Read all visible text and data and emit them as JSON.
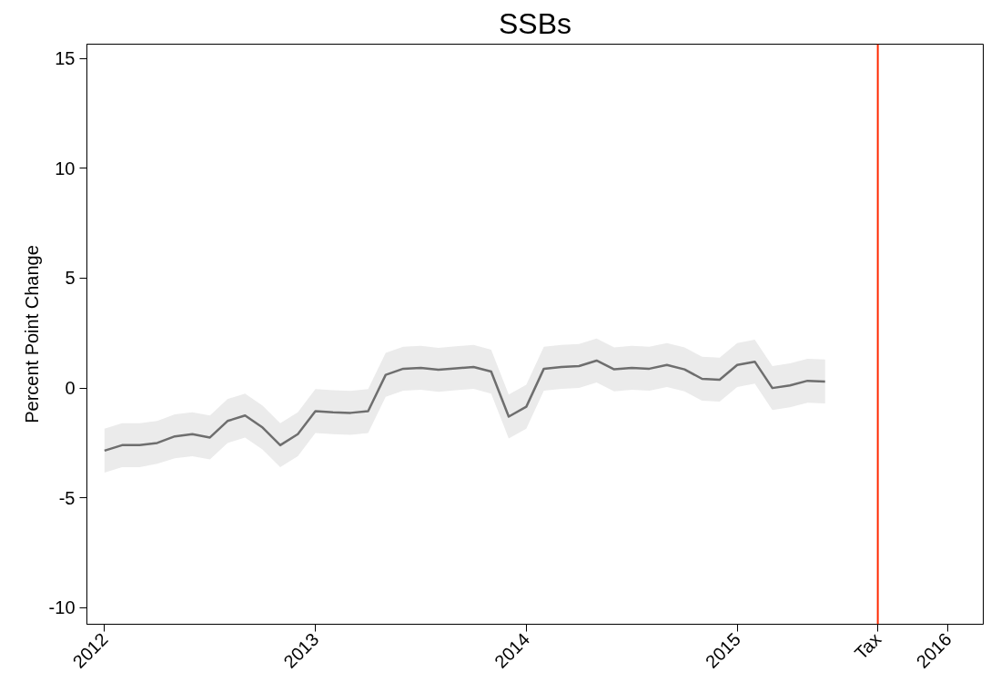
{
  "chart_data": {
    "type": "line",
    "title": "SSBs",
    "ylabel": "Percent Point Change",
    "x": [
      "2012-01",
      "2012-02",
      "2012-03",
      "2012-04",
      "2012-05",
      "2012-06",
      "2012-07",
      "2012-08",
      "2012-09",
      "2012-10",
      "2012-11",
      "2012-12",
      "2013-01",
      "2013-02",
      "2013-03",
      "2013-04",
      "2013-05",
      "2013-06",
      "2013-07",
      "2013-08",
      "2013-09",
      "2013-10",
      "2013-11",
      "2013-12",
      "2014-01",
      "2014-02",
      "2014-03",
      "2014-04",
      "2014-05",
      "2014-06",
      "2014-07",
      "2014-08",
      "2014-09",
      "2014-10",
      "2014-11",
      "2014-12",
      "2015-01",
      "2015-02",
      "2015-03",
      "2015-04",
      "2015-05",
      "2015-06"
    ],
    "series": [
      {
        "color": "#6e6e6e",
        "values": [
          -2.85,
          -2.6,
          -2.6,
          -2.5,
          -2.2,
          -2.1,
          -2.25,
          -1.5,
          -1.25,
          -1.8,
          -2.6,
          -2.1,
          -1.05,
          -1.1,
          -1.13,
          -1.05,
          0.6,
          0.88,
          0.92,
          0.83,
          0.9,
          0.96,
          0.75,
          -1.3,
          -0.85,
          0.88,
          0.96,
          1.0,
          1.25,
          0.85,
          0.92,
          0.88,
          1.05,
          0.85,
          0.42,
          0.38,
          1.05,
          1.2,
          0.0,
          0.12,
          0.33,
          0.3
        ],
        "lower": [
          -3.85,
          -3.6,
          -3.6,
          -3.45,
          -3.2,
          -3.1,
          -3.25,
          -2.5,
          -2.25,
          -2.8,
          -3.6,
          -3.1,
          -2.05,
          -2.1,
          -2.13,
          -2.05,
          -0.4,
          -0.12,
          -0.08,
          -0.17,
          -0.1,
          -0.04,
          -0.25,
          -2.3,
          -1.85,
          -0.12,
          -0.04,
          0.0,
          0.25,
          -0.15,
          -0.08,
          -0.12,
          0.05,
          -0.15,
          -0.58,
          -0.62,
          0.05,
          0.2,
          -1.0,
          -0.88,
          -0.67,
          -0.7
        ],
        "upper": [
          -1.85,
          -1.6,
          -1.6,
          -1.5,
          -1.2,
          -1.1,
          -1.25,
          -0.5,
          -0.25,
          -0.8,
          -1.6,
          -1.1,
          -0.05,
          -0.1,
          -0.13,
          -0.05,
          1.6,
          1.88,
          1.92,
          1.83,
          1.9,
          1.96,
          1.75,
          -0.3,
          0.15,
          1.88,
          1.96,
          2.0,
          2.25,
          1.85,
          1.92,
          1.88,
          2.05,
          1.85,
          1.42,
          1.38,
          2.05,
          2.2,
          1.0,
          1.12,
          1.33,
          1.3
        ]
      }
    ],
    "xlim": [
      "2011-12",
      "2016-03"
    ],
    "xticks": [
      "2012",
      "2013",
      "2014",
      "2015",
      {
        "value": "2015-09",
        "label": "Tax"
      },
      "2016"
    ],
    "ylim": [
      -10.75,
      15.65
    ],
    "yticks": [
      -10,
      -5,
      0,
      5,
      10,
      15
    ],
    "ref_lines": [
      {
        "axis": "x",
        "value": "2015-09",
        "color": "#ff2a00"
      }
    ],
    "grid": false,
    "line_style": "solid"
  }
}
